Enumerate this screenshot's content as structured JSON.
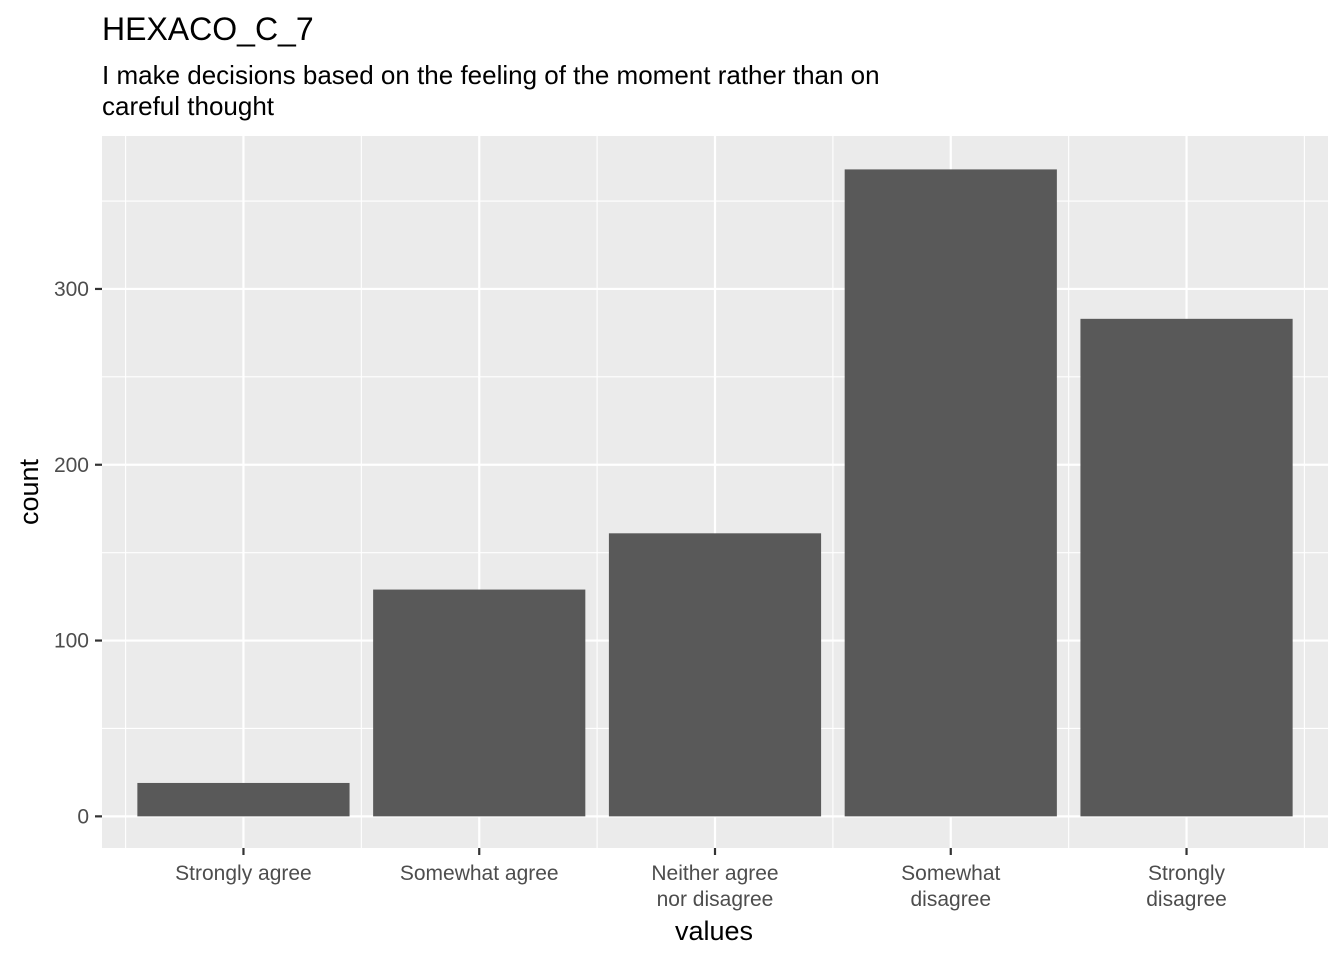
{
  "chart_data": {
    "type": "bar",
    "title": "HEXACO_C_7",
    "subtitle_lines": [
      "I make decisions based on the feeling of the moment rather than on",
      "careful thought"
    ],
    "xlabel": "values",
    "ylabel": "count",
    "categories": [
      [
        "Strongly agree"
      ],
      [
        "Somewhat agree"
      ],
      [
        "Neither agree",
        "nor disagree"
      ],
      [
        "Somewhat",
        "disagree"
      ],
      [
        "Strongly",
        "disagree"
      ]
    ],
    "values": [
      19,
      129,
      161,
      368,
      283
    ],
    "yticks": [
      0,
      100,
      200,
      300
    ],
    "ylim": [
      -18,
      387
    ],
    "grid": true,
    "colors": {
      "panel": "#ebebeb",
      "grid": "#ffffff",
      "bar": "#595959",
      "tick_text": "#4d4d4d",
      "tick_mark": "#333333"
    }
  }
}
